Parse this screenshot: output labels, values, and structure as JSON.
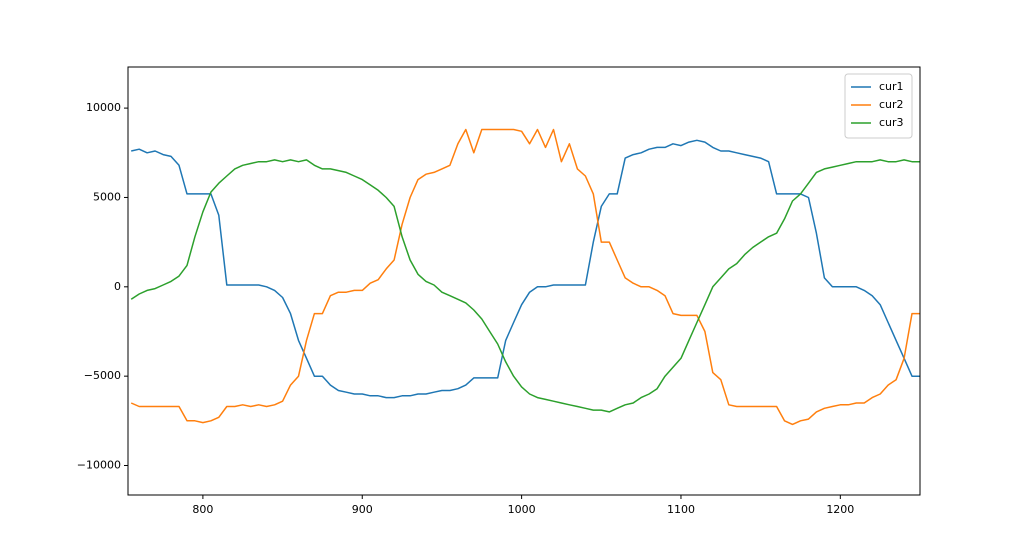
{
  "chart_data": {
    "type": "line",
    "x": [
      755,
      760,
      765,
      770,
      775,
      780,
      785,
      790,
      795,
      800,
      805,
      810,
      815,
      820,
      825,
      830,
      835,
      840,
      845,
      850,
      855,
      860,
      865,
      870,
      875,
      880,
      885,
      890,
      895,
      900,
      905,
      910,
      915,
      920,
      925,
      930,
      935,
      940,
      945,
      950,
      955,
      960,
      965,
      970,
      975,
      980,
      985,
      990,
      995,
      1000,
      1005,
      1010,
      1015,
      1020,
      1025,
      1030,
      1035,
      1040,
      1045,
      1050,
      1055,
      1060,
      1065,
      1070,
      1075,
      1080,
      1085,
      1090,
      1095,
      1100,
      1105,
      1110,
      1115,
      1120,
      1125,
      1130,
      1135,
      1140,
      1145,
      1150,
      1155,
      1160,
      1165,
      1170,
      1175,
      1180,
      1185,
      1190,
      1195,
      1200,
      1205,
      1210,
      1215,
      1220,
      1225,
      1230,
      1235,
      1240,
      1245,
      1250
    ],
    "series": [
      {
        "name": "cur1",
        "color": "#1f77b4",
        "values": [
          7600,
          7700,
          7500,
          7600,
          7400,
          7300,
          6800,
          5200,
          5200,
          5200,
          5200,
          4000,
          100,
          100,
          100,
          100,
          100,
          0,
          -200,
          -600,
          -1500,
          -3000,
          -4000,
          -5000,
          -5000,
          -5500,
          -5800,
          -5900,
          -6000,
          -6000,
          -6100,
          -6100,
          -6200,
          -6200,
          -6100,
          -6100,
          -6000,
          -6000,
          -5900,
          -5800,
          -5800,
          -5700,
          -5500,
          -5100,
          -5100,
          -5100,
          -5100,
          -3000,
          -2000,
          -1000,
          -300,
          0,
          0,
          100,
          100,
          100,
          100,
          100,
          2500,
          4500,
          5200,
          5200,
          7200,
          7400,
          7500,
          7700,
          7800,
          7800,
          8000,
          7900,
          8100,
          8200,
          8100,
          7800,
          7600,
          7600,
          7500,
          7400,
          7300,
          7200,
          7000,
          5200,
          5200,
          5200,
          5200,
          5000,
          3000,
          500,
          0,
          0,
          0,
          0,
          -200,
          -500,
          -1000,
          -2000,
          -3000,
          -4000,
          -5000,
          -5000
        ]
      },
      {
        "name": "cur2",
        "color": "#ff7f0e",
        "values": [
          -6500,
          -6700,
          -6700,
          -6700,
          -6700,
          -6700,
          -6700,
          -7500,
          -7500,
          -7600,
          -7500,
          -7300,
          -6700,
          -6700,
          -6600,
          -6700,
          -6600,
          -6700,
          -6600,
          -6400,
          -5500,
          -5000,
          -3000,
          -1500,
          -1500,
          -500,
          -300,
          -300,
          -200,
          -200,
          200,
          400,
          1000,
          1500,
          3500,
          5000,
          6000,
          6300,
          6400,
          6600,
          6800,
          8000,
          8800,
          7500,
          8800,
          8800,
          8800,
          8800,
          8800,
          8700,
          8000,
          8800,
          7800,
          8800,
          7000,
          8000,
          6600,
          6200,
          5200,
          2500,
          2500,
          1500,
          500,
          200,
          0,
          0,
          -200,
          -500,
          -1500,
          -1600,
          -1600,
          -1600,
          -2500,
          -4800,
          -5200,
          -6600,
          -6700,
          -6700,
          -6700,
          -6700,
          -6700,
          -6700,
          -7500,
          -7700,
          -7500,
          -7400,
          -7000,
          -6800,
          -6700,
          -6600,
          -6600,
          -6500,
          -6500,
          -6200,
          -6000,
          -5500,
          -5200,
          -4000,
          -1500,
          -1500
        ]
      },
      {
        "name": "cur3",
        "color": "#2ca02c",
        "values": [
          -700,
          -400,
          -200,
          -100,
          100,
          300,
          600,
          1200,
          2800,
          4200,
          5300,
          5800,
          6200,
          6600,
          6800,
          6900,
          7000,
          7000,
          7100,
          7000,
          7100,
          7000,
          7100,
          6800,
          6600,
          6600,
          6500,
          6400,
          6200,
          6000,
          5700,
          5400,
          5000,
          4500,
          2800,
          1500,
          700,
          300,
          100,
          -300,
          -500,
          -700,
          -900,
          -1300,
          -1800,
          -2500,
          -3200,
          -4200,
          -5000,
          -5600,
          -6000,
          -6200,
          -6300,
          -6400,
          -6500,
          -6600,
          -6700,
          -6800,
          -6900,
          -6900,
          -7000,
          -6800,
          -6600,
          -6500,
          -6200,
          -6000,
          -5700,
          -5000,
          -4500,
          -4000,
          -3000,
          -2000,
          -1000,
          0,
          500,
          1000,
          1300,
          1800,
          2200,
          2500,
          2800,
          3000,
          3800,
          4800,
          5200,
          5800,
          6400,
          6600,
          6700,
          6800,
          6900,
          7000,
          7000,
          7000,
          7100,
          7000,
          7000,
          7100,
          7000,
          7000
        ]
      }
    ],
    "xlim": [
      753,
      1250
    ],
    "ylim": [
      -11650,
      12300
    ],
    "xticks": [
      800,
      900,
      1000,
      1100,
      1200
    ],
    "yticks": [
      {
        "value": -10000,
        "label": "−10000"
      },
      {
        "value": -5000,
        "label": "−5000"
      },
      0,
      5000,
      10000
    ],
    "legend": "upper right"
  }
}
